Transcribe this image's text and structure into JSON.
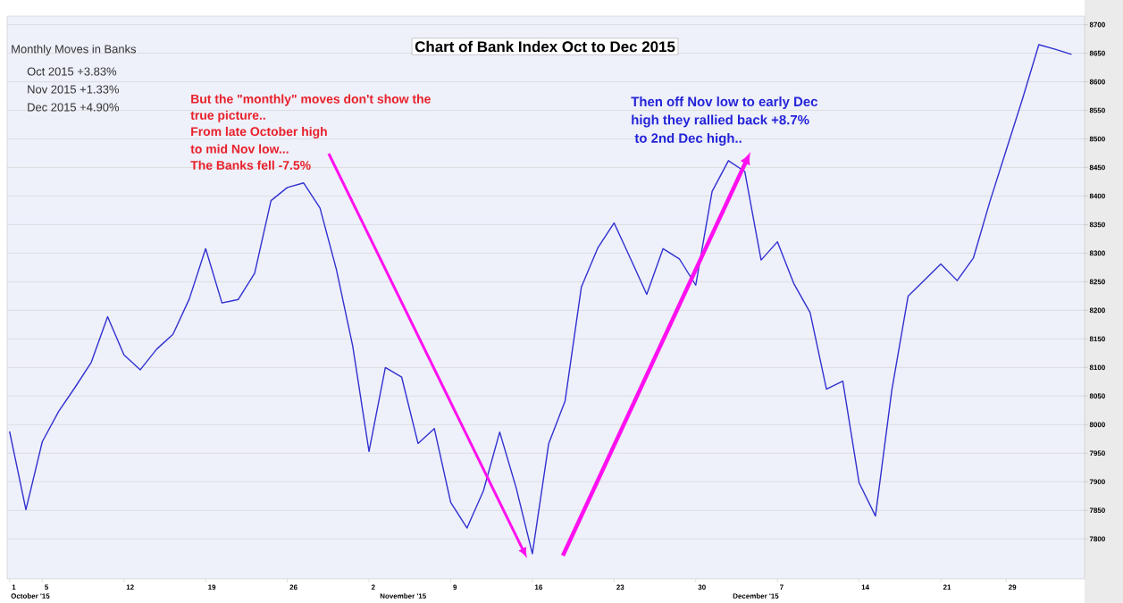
{
  "chart_data": {
    "type": "line",
    "title": "Chart of Bank Index Oct to Dec 2015",
    "categories": [
      "1",
      null,
      "5",
      null,
      null,
      null,
      null,
      "12",
      null,
      null,
      null,
      null,
      "19",
      null,
      null,
      null,
      null,
      "26",
      null,
      null,
      null,
      null,
      "2",
      null,
      null,
      null,
      null,
      "9",
      null,
      null,
      null,
      null,
      "16",
      null,
      null,
      null,
      null,
      "23",
      null,
      null,
      null,
      null,
      "30",
      null,
      null,
      null,
      null,
      "7",
      null,
      null,
      null,
      null,
      "14",
      null,
      null,
      null,
      null,
      "21",
      null,
      null,
      null,
      "29",
      null,
      null,
      null,
      null
    ],
    "series": [
      {
        "color": "#3030d0",
        "values": [
          7988,
          7851,
          7970,
          8023,
          8065,
          8109,
          8189,
          8122,
          8096,
          8132,
          8158,
          8220,
          8308,
          8213,
          8219,
          8265,
          8392,
          8415,
          8423,
          8379,
          8272,
          8138,
          7953,
          8100,
          8083,
          7967,
          7993,
          7864,
          7819,
          7884,
          7987,
          7890,
          7774,
          7967,
          8041,
          8241,
          8309,
          8353,
          8291,
          8228,
          8308,
          8290,
          8244,
          8408,
          8462,
          8443,
          8288,
          8320,
          8247,
          8196,
          8062,
          8076,
          7898,
          7840,
          8060,
          8225,
          8253,
          8281,
          8252,
          8292,
          8390,
          8480,
          8570,
          8665,
          8657,
          8648
        ]
      }
    ],
    "ylim": [
      7730,
      8715
    ],
    "yticks": [
      7800,
      7850,
      7900,
      7950,
      8000,
      8050,
      8100,
      8150,
      8200,
      8250,
      8300,
      8350,
      8400,
      8450,
      8500,
      8550,
      8600,
      8650,
      8700
    ],
    "grid": "y",
    "annotations": [
      "Monthly Moves in Banks",
      "Oct  2015  +3.83%",
      "Nov 2015  +1.33%",
      "Dec 2015  +4.90%",
      "But the \"monthly\" moves don't show the",
      "true picture..",
      "From late October high",
      "to mid Nov low...",
      "The Banks fell -7.5%",
      "Then  off Nov low to early Dec",
      "high  they rallied back +8.7%",
      " to 2nd Dec high..",
      "October '15",
      "November '15",
      "December '15"
    ]
  }
}
